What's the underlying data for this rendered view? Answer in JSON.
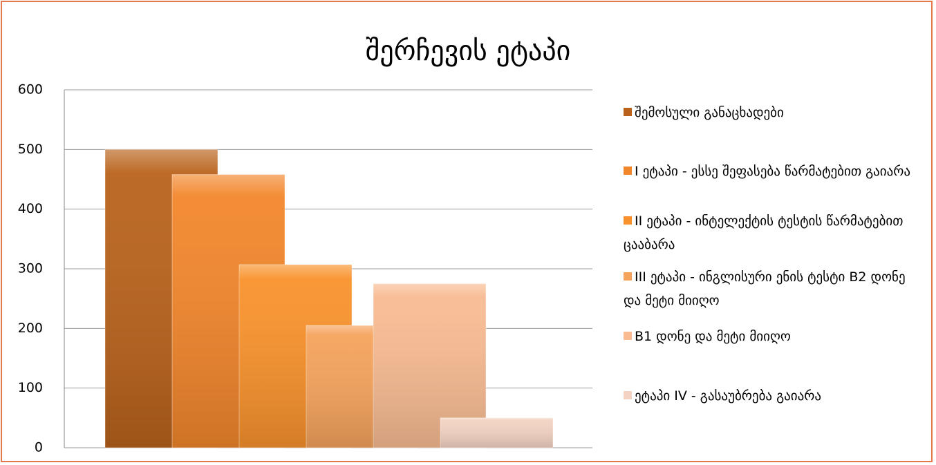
{
  "chart_data": {
    "type": "bar",
    "title": "შერჩევის ეტაპი",
    "categories": [
      null
    ],
    "series": [
      {
        "name": "შემოსული განაცხადები",
        "color": "#b9621b",
        "values": [
          500
        ]
      },
      {
        "name": "I ეტაპი - ესსე შეფასება წარმატებით გაიარა",
        "color": "#f2862b",
        "values": [
          458
        ]
      },
      {
        "name": "II ეტაპი - ინტელექტის ტესტის წარმატებით ცააბარა",
        "color": "#f9922c",
        "values": [
          307
        ]
      },
      {
        "name": "III ეტაპი - ინგლისური ენის ტესტი B2 დონე და მეტი მიიღო",
        "color": "#f5a35c",
        "values": [
          205
        ]
      },
      {
        "name": "B1 დონე და მეტი მიიღო",
        "color": "#f8bb92",
        "values": [
          275
        ]
      },
      {
        "name": "ეტაპი IV - გასაუბრება გაიარა",
        "color": "#f3d3c2",
        "values": [
          50
        ]
      }
    ],
    "ylim": [
      0,
      600
    ],
    "yticks": [
      0,
      100,
      200,
      300,
      400,
      500,
      600
    ],
    "grid": true
  }
}
